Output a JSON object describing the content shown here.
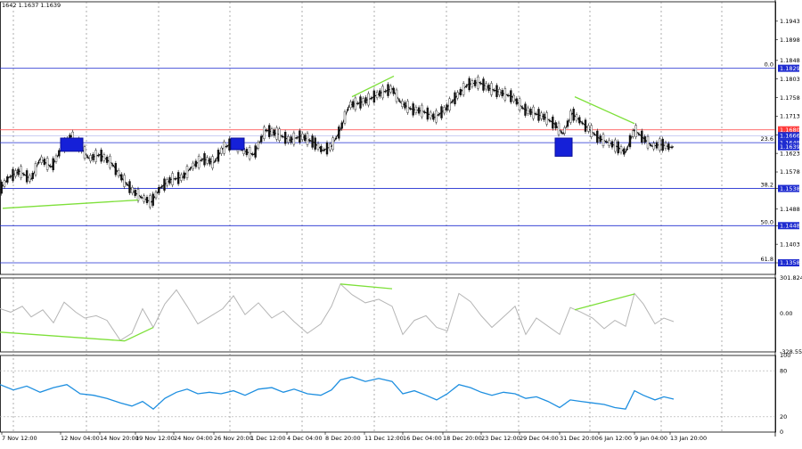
{
  "header": {
    "ohlc_text": "1642 1.1637 1.1639"
  },
  "chart_data": [
    {
      "type": "candlestick",
      "name": "price",
      "ylim": [
        1.133,
        1.199
      ],
      "grid": true,
      "x_tick_labels": [
        "7 Nov 12:00",
        "12 Nov 04:00",
        "14 Nov 20:00",
        "19 Nov 12:00",
        "24 Nov 04:00",
        "26 Nov 20:00",
        "1 Dec 12:00",
        "4 Dec 04:00",
        "8 Dec 20:00",
        "11 Dec 12:00",
        "16 Dec 04:00",
        "18 Dec 20:00",
        "23 Dec 12:00",
        "29 Dec 04:00",
        "31 Dec 20:00",
        "6 Jan 12:00",
        "9 Jan 04:00",
        "13 Jan 20:00"
      ],
      "y_tick_labels": [
        "1.1358",
        "1.1403",
        "1.1448",
        "1.1488",
        "1.1538",
        "1.1578",
        "1.1623",
        "1.1668",
        "1.1713",
        "1.1758",
        "1.1803",
        "1.1848",
        "1.1898",
        "1.1943"
      ],
      "price_tags": [
        {
          "label": "1.1829",
          "value": 1.1829,
          "color": "#1e2bd0"
        },
        {
          "label": "1.1680",
          "value": 1.168,
          "color": "#ff3b3b"
        },
        {
          "label": "1.1666",
          "value": 1.1666,
          "color": "#1e2bd0"
        },
        {
          "label": "1.1649",
          "value": 1.1649,
          "color": "#1e2bd0"
        },
        {
          "label": "1.1639",
          "value": 1.1639,
          "color": "#1e2bd0"
        },
        {
          "label": "1.1538",
          "value": 1.1538,
          "color": "#1e2bd0"
        },
        {
          "label": "1.1448",
          "value": 1.1448,
          "color": "#1e2bd0"
        },
        {
          "label": "1.1358",
          "value": 1.1358,
          "color": "#1e2bd0"
        }
      ],
      "fib_levels": [
        {
          "label": "0.0",
          "value": 1.1829
        },
        {
          "label": "23.6",
          "value": 1.1649
        },
        {
          "label": "38.2",
          "value": 1.1538
        },
        {
          "label": "50.0",
          "value": 1.1448
        },
        {
          "label": "61.8",
          "value": 1.1358
        }
      ],
      "resistance_level": 1.168,
      "price_path": [
        [
          0,
          1.1535
        ],
        [
          10,
          1.1565
        ],
        [
          22,
          1.158
        ],
        [
          35,
          1.156
        ],
        [
          45,
          1.161
        ],
        [
          58,
          1.159
        ],
        [
          68,
          1.163
        ],
        [
          80,
          1.1665
        ],
        [
          90,
          1.164
        ],
        [
          100,
          1.161
        ],
        [
          112,
          1.162
        ],
        [
          125,
          1.16
        ],
        [
          138,
          1.156
        ],
        [
          150,
          1.153
        ],
        [
          160,
          1.1515
        ],
        [
          170,
          1.1505
        ],
        [
          180,
          1.154
        ],
        [
          192,
          1.156
        ],
        [
          205,
          1.1565
        ],
        [
          215,
          1.159
        ],
        [
          228,
          1.161
        ],
        [
          240,
          1.16
        ],
        [
          250,
          1.1635
        ],
        [
          262,
          1.165
        ],
        [
          272,
          1.163
        ],
        [
          285,
          1.162
        ],
        [
          298,
          1.168
        ],
        [
          312,
          1.167
        ],
        [
          325,
          1.1655
        ],
        [
          338,
          1.1665
        ],
        [
          352,
          1.165
        ],
        [
          362,
          1.163
        ],
        [
          372,
          1.164
        ],
        [
          382,
          1.168
        ],
        [
          392,
          1.174
        ],
        [
          403,
          1.1745
        ],
        [
          415,
          1.1755
        ],
        [
          428,
          1.177
        ],
        [
          440,
          1.178
        ],
        [
          450,
          1.1745
        ],
        [
          462,
          1.173
        ],
        [
          475,
          1.1725
        ],
        [
          488,
          1.171
        ],
        [
          500,
          1.173
        ],
        [
          512,
          1.176
        ],
        [
          525,
          1.179
        ],
        [
          538,
          1.1795
        ],
        [
          550,
          1.178
        ],
        [
          562,
          1.177
        ],
        [
          575,
          1.176
        ],
        [
          588,
          1.173
        ],
        [
          600,
          1.172
        ],
        [
          612,
          1.171
        ],
        [
          622,
          1.1695
        ],
        [
          632,
          1.167
        ],
        [
          642,
          1.172
        ],
        [
          652,
          1.17
        ],
        [
          662,
          1.168
        ],
        [
          672,
          1.166
        ],
        [
          682,
          1.165
        ],
        [
          692,
          1.164
        ],
        [
          702,
          1.1625
        ],
        [
          712,
          1.168
        ],
        [
          722,
          1.166
        ],
        [
          732,
          1.164
        ],
        [
          742,
          1.1645
        ],
        [
          752,
          1.1638
        ],
        [
          756,
          1.1639
        ]
      ],
      "divergence_lines": [
        {
          "points": [
            [
              3,
              1.149
            ],
            [
              155,
              1.151
            ]
          ]
        },
        {
          "points": [
            [
              395,
              1.176
            ],
            [
              442,
              1.181
            ]
          ]
        },
        {
          "points": [
            [
              645,
              1.176
            ],
            [
              712,
              1.1695
            ]
          ]
        }
      ],
      "zone_markers": [
        {
          "from": 1.1628,
          "to": 1.166
        },
        {
          "from": 1.1632,
          "to": 1.166
        },
        {
          "from": 1.1616,
          "to": 1.166
        }
      ]
    },
    {
      "type": "line",
      "name": "oscillator-cci",
      "ylim": [
        -328.551,
        301.8242
      ],
      "y_tick_labels": [
        "301.8242",
        "0.00",
        "-328.551"
      ],
      "series_color": "#b5b5b5",
      "values_path": [
        [
          0,
          40
        ],
        [
          12,
          10
        ],
        [
          25,
          60
        ],
        [
          35,
          -30
        ],
        [
          48,
          30
        ],
        [
          60,
          -80
        ],
        [
          72,
          95
        ],
        [
          85,
          10
        ],
        [
          95,
          -40
        ],
        [
          108,
          -20
        ],
        [
          120,
          -60
        ],
        [
          135,
          -230
        ],
        [
          148,
          -170
        ],
        [
          160,
          40
        ],
        [
          172,
          -120
        ],
        [
          185,
          80
        ],
        [
          198,
          200
        ],
        [
          210,
          60
        ],
        [
          222,
          -90
        ],
        [
          235,
          -30
        ],
        [
          250,
          40
        ],
        [
          262,
          150
        ],
        [
          275,
          -10
        ],
        [
          290,
          90
        ],
        [
          305,
          -40
        ],
        [
          318,
          20
        ],
        [
          330,
          -70
        ],
        [
          345,
          -170
        ],
        [
          360,
          -90
        ],
        [
          372,
          60
        ],
        [
          382,
          250
        ],
        [
          395,
          160
        ],
        [
          410,
          90
        ],
        [
          425,
          120
        ],
        [
          440,
          60
        ],
        [
          452,
          -180
        ],
        [
          465,
          -60
        ],
        [
          478,
          -20
        ],
        [
          490,
          -120
        ],
        [
          502,
          -150
        ],
        [
          515,
          170
        ],
        [
          528,
          100
        ],
        [
          540,
          -20
        ],
        [
          552,
          -120
        ],
        [
          565,
          -30
        ],
        [
          578,
          60
        ],
        [
          590,
          -180
        ],
        [
          602,
          -40
        ],
        [
          615,
          -110
        ],
        [
          628,
          -180
        ],
        [
          640,
          50
        ],
        [
          652,
          10
        ],
        [
          665,
          -40
        ],
        [
          678,
          -130
        ],
        [
          690,
          -60
        ],
        [
          702,
          -110
        ],
        [
          712,
          170
        ],
        [
          722,
          80
        ],
        [
          735,
          -90
        ],
        [
          745,
          -40
        ],
        [
          756,
          -70
        ]
      ],
      "divergence_lines": [
        {
          "points": [
            [
              0,
              -160
            ],
            [
              140,
              -235
            ]
          ]
        },
        {
          "points": [
            [
              140,
              -235
            ],
            [
              172,
              -120
            ]
          ]
        },
        {
          "points": [
            [
              382,
              250
            ],
            [
              440,
              210
            ]
          ]
        },
        {
          "points": [
            [
              645,
              30
            ],
            [
              712,
              165
            ]
          ]
        }
      ]
    },
    {
      "type": "line",
      "name": "oscillator-rsi",
      "ylim": [
        0,
        100
      ],
      "y_tick_labels": [
        "100",
        "80",
        "20",
        "0"
      ],
      "series_color": "#1e8fe0",
      "values_path": [
        [
          0,
          62
        ],
        [
          15,
          55
        ],
        [
          30,
          60
        ],
        [
          45,
          52
        ],
        [
          60,
          58
        ],
        [
          75,
          62
        ],
        [
          90,
          50
        ],
        [
          105,
          48
        ],
        [
          120,
          44
        ],
        [
          135,
          38
        ],
        [
          148,
          34
        ],
        [
          160,
          40
        ],
        [
          172,
          30
        ],
        [
          185,
          44
        ],
        [
          198,
          52
        ],
        [
          210,
          56
        ],
        [
          222,
          50
        ],
        [
          235,
          52
        ],
        [
          248,
          50
        ],
        [
          262,
          54
        ],
        [
          275,
          48
        ],
        [
          290,
          56
        ],
        [
          305,
          58
        ],
        [
          318,
          52
        ],
        [
          330,
          56
        ],
        [
          345,
          50
        ],
        [
          360,
          48
        ],
        [
          372,
          55
        ],
        [
          382,
          68
        ],
        [
          395,
          72
        ],
        [
          410,
          66
        ],
        [
          425,
          70
        ],
        [
          440,
          66
        ],
        [
          452,
          50
        ],
        [
          465,
          54
        ],
        [
          478,
          48
        ],
        [
          490,
          42
        ],
        [
          502,
          50
        ],
        [
          515,
          62
        ],
        [
          528,
          58
        ],
        [
          540,
          52
        ],
        [
          552,
          48
        ],
        [
          565,
          52
        ],
        [
          578,
          50
        ],
        [
          590,
          44
        ],
        [
          602,
          46
        ],
        [
          615,
          40
        ],
        [
          628,
          32
        ],
        [
          640,
          42
        ],
        [
          652,
          40
        ],
        [
          665,
          38
        ],
        [
          678,
          36
        ],
        [
          690,
          32
        ],
        [
          702,
          30
        ],
        [
          712,
          54
        ],
        [
          722,
          48
        ],
        [
          735,
          42
        ],
        [
          745,
          46
        ],
        [
          756,
          43
        ]
      ]
    }
  ]
}
